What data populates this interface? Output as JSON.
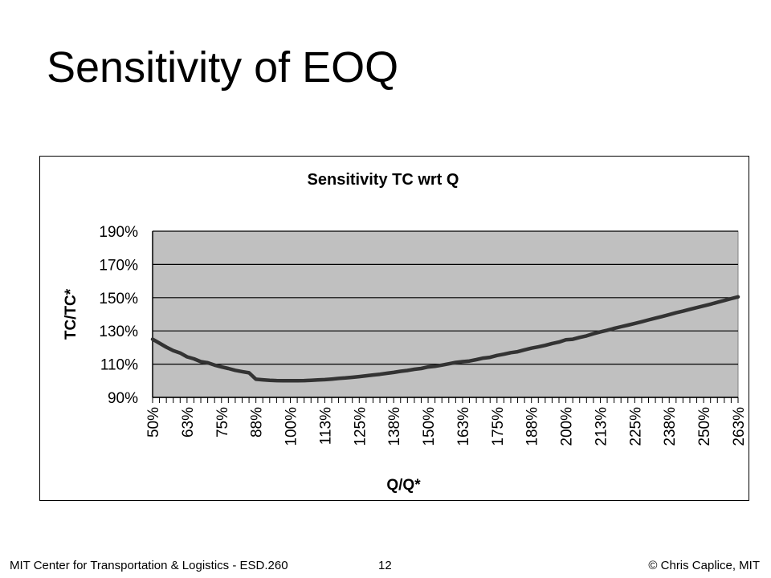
{
  "slide": {
    "title": "Sensitivity of EOQ"
  },
  "footer": {
    "left": "MIT Center for Transportation & Logistics - ESD.260",
    "page": "12",
    "right": "© Chris Caplice, MIT"
  },
  "chart_data": {
    "type": "line",
    "title": "Sensitivity TC wrt Q",
    "xlabel": "Q/Q*",
    "ylabel": "TC/TC*",
    "ylim": [
      0.9,
      1.9
    ],
    "yticks": [
      0.9,
      1.1,
      1.3,
      1.5,
      1.7,
      1.9
    ],
    "ytick_labels": [
      "90%",
      "110%",
      "130%",
      "150%",
      "170%",
      "190%"
    ],
    "xlim": [
      0.5,
      2.625
    ],
    "xtick_values": [
      0.5,
      0.625,
      0.75,
      0.875,
      1.0,
      1.125,
      1.25,
      1.375,
      1.5,
      1.625,
      1.75,
      1.875,
      2.0,
      2.125,
      2.25,
      2.375,
      2.5,
      2.625
    ],
    "xtick_labels": [
      "50%",
      "63%",
      "75%",
      "88%",
      "100%",
      "113%",
      "125%",
      "138%",
      "150%",
      "163%",
      "175%",
      "188%",
      "200%",
      "213%",
      "225%",
      "238%",
      "250%",
      "263%"
    ],
    "grid": "horizontal",
    "plot_background": "#c0c0c0",
    "line_color": "#333333",
    "series": [
      {
        "x": [
          0.5,
          0.525,
          0.55,
          0.575,
          0.6,
          0.625,
          0.65,
          0.675,
          0.7,
          0.725,
          0.75,
          0.775,
          0.8,
          0.825,
          0.85,
          0.875,
          0.9,
          0.925,
          0.95,
          0.975,
          1.0,
          1.025,
          1.05,
          1.075,
          1.1,
          1.125,
          1.15,
          1.175,
          1.2,
          1.225,
          1.25,
          1.275,
          1.3,
          1.325,
          1.35,
          1.375,
          1.4,
          1.425,
          1.45,
          1.475,
          1.5,
          1.525,
          1.55,
          1.575,
          1.6,
          1.625,
          1.65,
          1.675,
          1.7,
          1.725,
          1.75,
          1.775,
          1.8,
          1.825,
          1.85,
          1.875,
          1.9,
          1.925,
          1.95,
          1.975,
          2.0,
          2.025,
          2.05,
          2.075,
          2.1,
          2.125,
          2.15,
          2.175,
          2.2,
          2.225,
          2.25,
          2.275,
          2.3,
          2.325,
          2.35,
          2.375,
          2.4,
          2.425,
          2.45,
          2.475,
          2.5,
          2.525,
          2.55,
          2.575,
          2.6,
          2.625
        ],
        "values": [
          1.25,
          1.226,
          1.202,
          1.181,
          1.167,
          1.144,
          1.132,
          1.115,
          1.108,
          1.094,
          1.083,
          1.074,
          1.063,
          1.055,
          1.048,
          1.009,
          1.006,
          1.003,
          1.001,
          1.0,
          1.0,
          1.0,
          1.001,
          1.003,
          1.005,
          1.007,
          1.01,
          1.014,
          1.017,
          1.021,
          1.025,
          1.03,
          1.035,
          1.039,
          1.045,
          1.05,
          1.057,
          1.062,
          1.069,
          1.074,
          1.083,
          1.087,
          1.094,
          1.102,
          1.11,
          1.115,
          1.119,
          1.127,
          1.136,
          1.141,
          1.152,
          1.16,
          1.169,
          1.175,
          1.186,
          1.196,
          1.204,
          1.213,
          1.224,
          1.233,
          1.247,
          1.25,
          1.261,
          1.27,
          1.283,
          1.294,
          1.304,
          1.315,
          1.325,
          1.335,
          1.345,
          1.355,
          1.366,
          1.377,
          1.387,
          1.398,
          1.409,
          1.419,
          1.43,
          1.44,
          1.45,
          1.461,
          1.472,
          1.483,
          1.494,
          1.505
        ]
      }
    ]
  }
}
